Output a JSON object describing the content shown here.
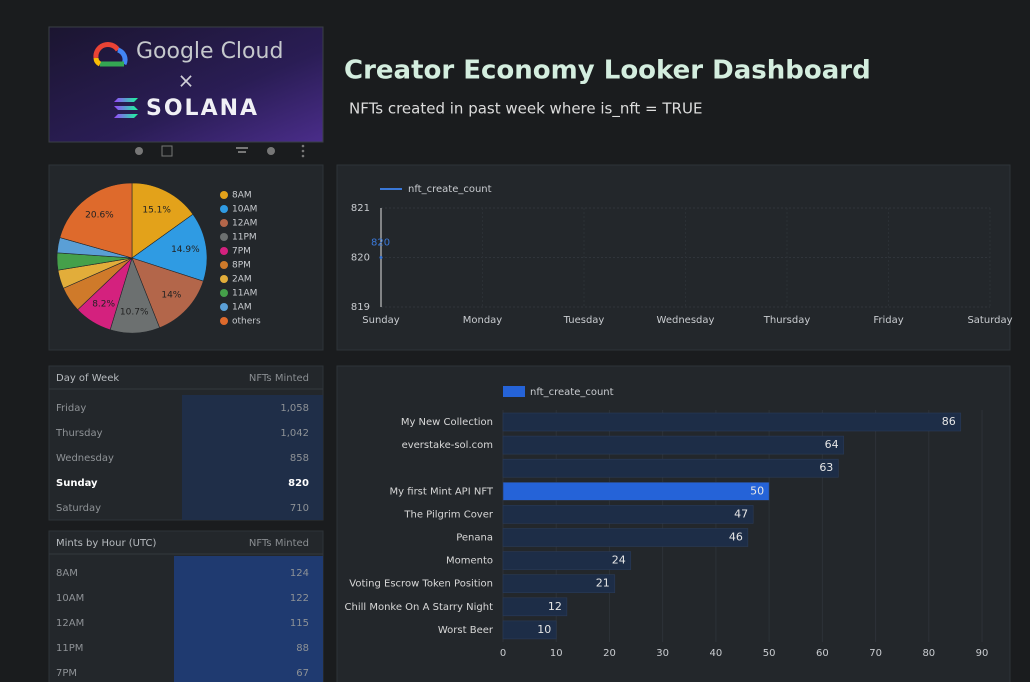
{
  "header": {
    "logo": {
      "brand": "Google Cloud",
      "times": "×",
      "partner": "SOLANA"
    },
    "title": "Creator Economy Looker Dashboard",
    "subtitle": "NFTs created in past week where is_nft = TRUE"
  },
  "pie": {
    "type": "pie",
    "categories": [
      "8AM",
      "10AM",
      "12AM",
      "11PM",
      "7PM",
      "8PM",
      "2AM",
      "11AM",
      "1AM",
      "others"
    ],
    "values": [
      15.1,
      14.9,
      14,
      10.7,
      8.2,
      5.5,
      4,
      3.7,
      3.3,
      20.6
    ],
    "value_labels": [
      "15.1%",
      "14.9%",
      "14%",
      "10.7%",
      "8.2%",
      null,
      null,
      null,
      null,
      "20.6%"
    ],
    "colors": [
      "#e3a21a",
      "#2f9be3",
      "#b3664a",
      "#6c7070",
      "#d4217e",
      "#cf7a2a",
      "#e2ad3a",
      "#45a04a",
      "#5a9fd6",
      "#de6a2c"
    ]
  },
  "line_chart": {
    "type": "line",
    "categories": [
      "Sunday",
      "Monday",
      "Tuesday",
      "Wednesday",
      "Thursday",
      "Friday",
      "Saturday"
    ],
    "series": [
      {
        "name": "nft_create_count",
        "color": "#3a78d8",
        "values": [
          820,
          null,
          null,
          null,
          null,
          null,
          null
        ]
      }
    ],
    "ylim": [
      819,
      821
    ],
    "yticks": [
      819,
      820,
      821
    ],
    "grid": true
  },
  "day_table": {
    "columns": [
      "Day of Week",
      "NFTs Minted"
    ],
    "rows": [
      [
        "Friday",
        "1,058"
      ],
      [
        "Thursday",
        "1,042"
      ],
      [
        "Wednesday",
        "858"
      ],
      [
        "Sunday",
        "820"
      ],
      [
        "Saturday",
        "710"
      ]
    ],
    "bold_row": 3
  },
  "hour_table": {
    "columns": [
      "Mints by Hour (UTC)",
      "NFTs Minted"
    ],
    "rows": [
      [
        "8AM",
        "124"
      ],
      [
        "10AM",
        "122"
      ],
      [
        "12AM",
        "115"
      ],
      [
        "11PM",
        "88"
      ],
      [
        "7PM",
        "67"
      ]
    ]
  },
  "bar_chart": {
    "type": "bar",
    "orientation": "horizontal",
    "categories": [
      "My New Collection",
      "everstake-sol.com",
      null,
      "My first Mint API NFT",
      "The Pilgrim Cover",
      "Penana",
      "Momento",
      "Voting Escrow Token Position",
      "Chill Monke On A Starry Night",
      "Worst Beer"
    ],
    "series": [
      {
        "name": "nft_create_count",
        "color": "#1d2d47",
        "values": [
          86,
          64,
          63,
          50,
          47,
          46,
          24,
          21,
          12,
          10
        ]
      }
    ],
    "highlight": {
      "index": 3,
      "color": "#2563d8"
    },
    "xlim": [
      0,
      93
    ],
    "xticks": [
      0,
      10,
      20,
      30,
      40,
      50,
      60,
      70,
      80,
      90
    ],
    "grid": true
  }
}
